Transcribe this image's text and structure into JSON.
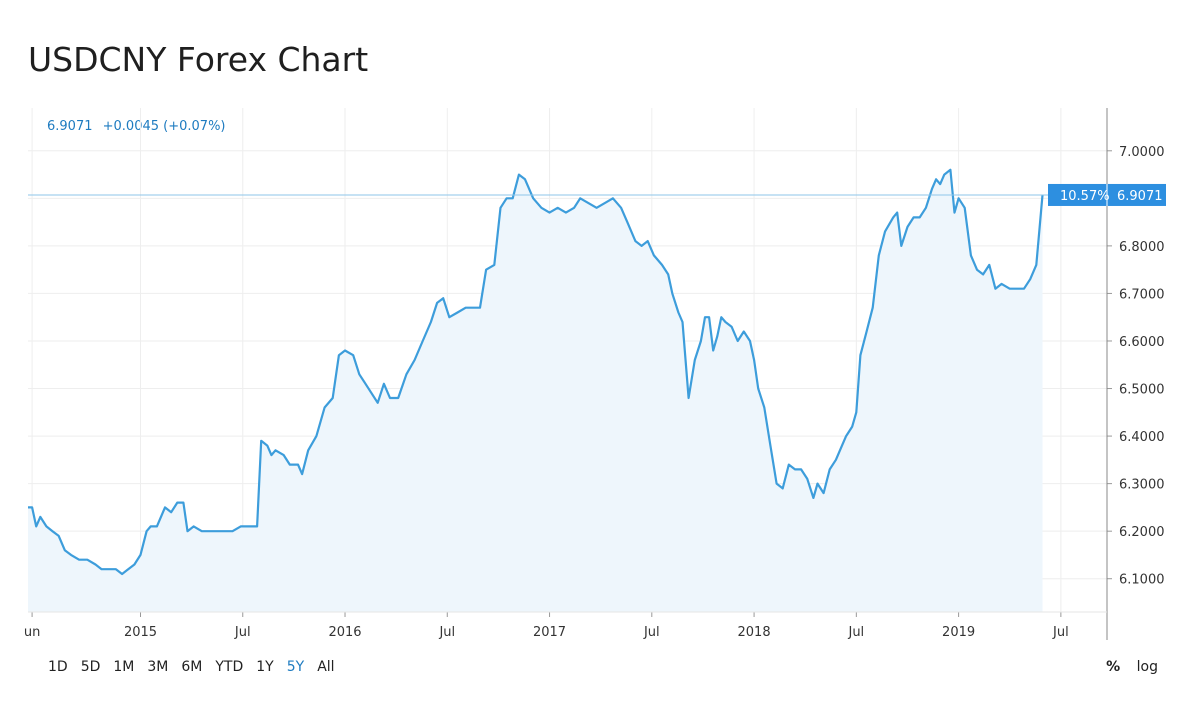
{
  "title": "USDCNY Forex Chart",
  "quote": {
    "price": "6.9071",
    "change": "+0.0045 (+0.07%)"
  },
  "last_label": {
    "pct": "10.57%",
    "value": "6.9071"
  },
  "ranges": [
    {
      "label": "1D",
      "active": false
    },
    {
      "label": "5D",
      "active": false
    },
    {
      "label": "1M",
      "active": false
    },
    {
      "label": "3M",
      "active": false
    },
    {
      "label": "6M",
      "active": false
    },
    {
      "label": "YTD",
      "active": false
    },
    {
      "label": "1Y",
      "active": false
    },
    {
      "label": "5Y",
      "active": true
    },
    {
      "label": "All",
      "active": false
    }
  ],
  "options": {
    "percent": "%",
    "log": "log"
  },
  "colors": {
    "line": "#3d9ddb",
    "fill": "#eef6fc",
    "accent": "#1e7bc0",
    "label_bg": "#2d8fe0"
  },
  "chart_data": {
    "type": "area",
    "x_ticks": [
      {
        "label": "un",
        "t": 2014.47
      },
      {
        "label": "2015",
        "t": 2015.0
      },
      {
        "label": "Jul",
        "t": 2015.5
      },
      {
        "label": "2016",
        "t": 2016.0
      },
      {
        "label": "Jul",
        "t": 2016.5
      },
      {
        "label": "2017",
        "t": 2017.0
      },
      {
        "label": "Jul",
        "t": 2017.5
      },
      {
        "label": "2018",
        "t": 2018.0
      },
      {
        "label": "Jul",
        "t": 2018.5
      },
      {
        "label": "2019",
        "t": 2019.0
      },
      {
        "label": "Jul",
        "t": 2019.5
      }
    ],
    "y_ticks": [
      "7.0000",
      "6.9000",
      "6.8000",
      "6.7000",
      "6.6000",
      "6.5000",
      "6.4000",
      "6.3000",
      "6.2000",
      "6.1000"
    ],
    "ylim": [
      6.03,
      7.09
    ],
    "xlim": [
      2014.45,
      2019.53
    ],
    "grid": true,
    "series": [
      {
        "points": [
          [
            2014.45,
            6.25
          ],
          [
            2014.47,
            6.25
          ],
          [
            2014.49,
            6.21
          ],
          [
            2014.51,
            6.23
          ],
          [
            2014.54,
            6.21
          ],
          [
            2014.57,
            6.2
          ],
          [
            2014.6,
            6.19
          ],
          [
            2014.63,
            6.16
          ],
          [
            2014.66,
            6.15
          ],
          [
            2014.7,
            6.14
          ],
          [
            2014.74,
            6.14
          ],
          [
            2014.78,
            6.13
          ],
          [
            2014.81,
            6.12
          ],
          [
            2014.84,
            6.12
          ],
          [
            2014.88,
            6.12
          ],
          [
            2014.91,
            6.11
          ],
          [
            2014.94,
            6.12
          ],
          [
            2014.97,
            6.13
          ],
          [
            2015.0,
            6.15
          ],
          [
            2015.03,
            6.2
          ],
          [
            2015.05,
            6.21
          ],
          [
            2015.08,
            6.21
          ],
          [
            2015.12,
            6.25
          ],
          [
            2015.15,
            6.24
          ],
          [
            2015.18,
            6.26
          ],
          [
            2015.21,
            6.26
          ],
          [
            2015.23,
            6.2
          ],
          [
            2015.26,
            6.21
          ],
          [
            2015.3,
            6.2
          ],
          [
            2015.33,
            6.2
          ],
          [
            2015.37,
            6.2
          ],
          [
            2015.41,
            6.2
          ],
          [
            2015.45,
            6.2
          ],
          [
            2015.49,
            6.21
          ],
          [
            2015.53,
            6.21
          ],
          [
            2015.57,
            6.21
          ],
          [
            2015.59,
            6.39
          ],
          [
            2015.62,
            6.38
          ],
          [
            2015.64,
            6.36
          ],
          [
            2015.66,
            6.37
          ],
          [
            2015.7,
            6.36
          ],
          [
            2015.73,
            6.34
          ],
          [
            2015.77,
            6.34
          ],
          [
            2015.79,
            6.32
          ],
          [
            2015.82,
            6.37
          ],
          [
            2015.86,
            6.4
          ],
          [
            2015.9,
            6.46
          ],
          [
            2015.94,
            6.48
          ],
          [
            2015.97,
            6.57
          ],
          [
            2016.0,
            6.58
          ],
          [
            2016.04,
            6.57
          ],
          [
            2016.07,
            6.53
          ],
          [
            2016.1,
            6.51
          ],
          [
            2016.13,
            6.49
          ],
          [
            2016.16,
            6.47
          ],
          [
            2016.19,
            6.51
          ],
          [
            2016.22,
            6.48
          ],
          [
            2016.26,
            6.48
          ],
          [
            2016.3,
            6.53
          ],
          [
            2016.34,
            6.56
          ],
          [
            2016.38,
            6.6
          ],
          [
            2016.42,
            6.64
          ],
          [
            2016.45,
            6.68
          ],
          [
            2016.48,
            6.69
          ],
          [
            2016.51,
            6.65
          ],
          [
            2016.55,
            6.66
          ],
          [
            2016.59,
            6.67
          ],
          [
            2016.63,
            6.67
          ],
          [
            2016.66,
            6.67
          ],
          [
            2016.69,
            6.75
          ],
          [
            2016.73,
            6.76
          ],
          [
            2016.76,
            6.88
          ],
          [
            2016.79,
            6.9
          ],
          [
            2016.82,
            6.9
          ],
          [
            2016.85,
            6.95
          ],
          [
            2016.88,
            6.94
          ],
          [
            2016.92,
            6.9
          ],
          [
            2016.96,
            6.88
          ],
          [
            2017.0,
            6.87
          ],
          [
            2017.04,
            6.88
          ],
          [
            2017.08,
            6.87
          ],
          [
            2017.12,
            6.88
          ],
          [
            2017.15,
            6.9
          ],
          [
            2017.19,
            6.89
          ],
          [
            2017.23,
            6.88
          ],
          [
            2017.27,
            6.89
          ],
          [
            2017.31,
            6.9
          ],
          [
            2017.35,
            6.88
          ],
          [
            2017.38,
            6.85
          ],
          [
            2017.42,
            6.81
          ],
          [
            2017.45,
            6.8
          ],
          [
            2017.48,
            6.81
          ],
          [
            2017.51,
            6.78
          ],
          [
            2017.55,
            6.76
          ],
          [
            2017.58,
            6.74
          ],
          [
            2017.6,
            6.7
          ],
          [
            2017.63,
            6.66
          ],
          [
            2017.65,
            6.64
          ],
          [
            2017.68,
            6.48
          ],
          [
            2017.71,
            6.56
          ],
          [
            2017.74,
            6.6
          ],
          [
            2017.76,
            6.65
          ],
          [
            2017.78,
            6.65
          ],
          [
            2017.8,
            6.58
          ],
          [
            2017.82,
            6.61
          ],
          [
            2017.84,
            6.65
          ],
          [
            2017.86,
            6.64
          ],
          [
            2017.89,
            6.63
          ],
          [
            2017.92,
            6.6
          ],
          [
            2017.95,
            6.62
          ],
          [
            2017.98,
            6.6
          ],
          [
            2018.0,
            6.56
          ],
          [
            2018.02,
            6.5
          ],
          [
            2018.05,
            6.46
          ],
          [
            2018.08,
            6.38
          ],
          [
            2018.11,
            6.3
          ],
          [
            2018.14,
            6.29
          ],
          [
            2018.17,
            6.34
          ],
          [
            2018.2,
            6.33
          ],
          [
            2018.23,
            6.33
          ],
          [
            2018.26,
            6.31
          ],
          [
            2018.29,
            6.27
          ],
          [
            2018.31,
            6.3
          ],
          [
            2018.34,
            6.28
          ],
          [
            2018.37,
            6.33
          ],
          [
            2018.4,
            6.35
          ],
          [
            2018.43,
            6.38
          ],
          [
            2018.45,
            6.4
          ],
          [
            2018.48,
            6.42
          ],
          [
            2018.5,
            6.45
          ],
          [
            2018.52,
            6.57
          ],
          [
            2018.55,
            6.62
          ],
          [
            2018.58,
            6.67
          ],
          [
            2018.61,
            6.78
          ],
          [
            2018.64,
            6.83
          ],
          [
            2018.68,
            6.86
          ],
          [
            2018.7,
            6.87
          ],
          [
            2018.72,
            6.8
          ],
          [
            2018.75,
            6.84
          ],
          [
            2018.78,
            6.86
          ],
          [
            2018.81,
            6.86
          ],
          [
            2018.84,
            6.88
          ],
          [
            2018.87,
            6.92
          ],
          [
            2018.89,
            6.94
          ],
          [
            2018.91,
            6.93
          ],
          [
            2018.93,
            6.95
          ],
          [
            2018.96,
            6.96
          ],
          [
            2018.98,
            6.87
          ],
          [
            2019.0,
            6.9
          ],
          [
            2019.03,
            6.88
          ],
          [
            2019.06,
            6.78
          ],
          [
            2019.09,
            6.75
          ],
          [
            2019.12,
            6.74
          ],
          [
            2019.15,
            6.76
          ],
          [
            2019.18,
            6.71
          ],
          [
            2019.21,
            6.72
          ],
          [
            2019.25,
            6.71
          ],
          [
            2019.29,
            6.71
          ],
          [
            2019.32,
            6.71
          ],
          [
            2019.35,
            6.73
          ],
          [
            2019.38,
            6.76
          ],
          [
            2019.41,
            6.9071
          ]
        ]
      }
    ]
  }
}
